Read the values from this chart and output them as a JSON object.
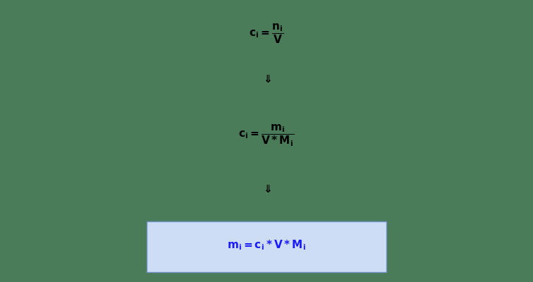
{
  "background_color": "#4a7c59",
  "eq1": "$\\mathbf{c_i = \\dfrac{n_i}{V}}$",
  "arrow": "$\\mathbf{\\Downarrow}$",
  "eq2": "$\\mathbf{c_i = \\dfrac{m_i}{V * M_i}}$",
  "eq3": "$\\mathbf{m_i = c_i * V * M_i}$",
  "text_color": "#000000",
  "eq3_text_color": "#1a1aff",
  "box_facecolor": "#ccddf5",
  "box_edgecolor": "#7090c0",
  "fontsize": 11
}
